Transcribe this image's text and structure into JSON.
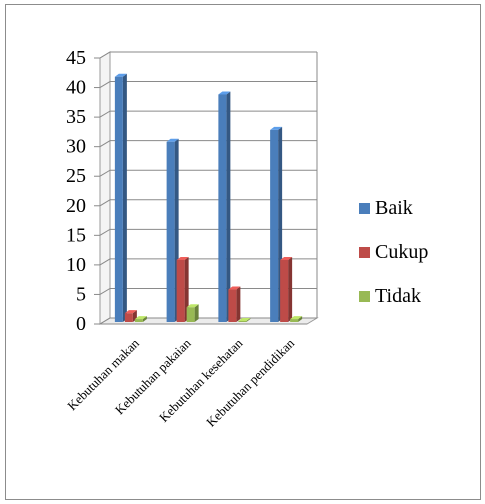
{
  "chart_data": {
    "type": "bar",
    "categories": [
      "Kebutuhan makan",
      "Kebutuhan pakaian",
      "Kebutuhan kesehatan",
      "Kebutuhan pendidikan"
    ],
    "series": [
      {
        "name": "Baik",
        "color": "#4a7ebb",
        "values": [
          42,
          31,
          39,
          33
        ]
      },
      {
        "name": "Cukup",
        "color": "#be4b48",
        "values": [
          2,
          11,
          6,
          11
        ]
      },
      {
        "name": "Tidak",
        "color": "#98b954",
        "values": [
          1,
          3,
          0,
          1
        ]
      }
    ],
    "ylim": [
      0,
      45
    ],
    "yticks": [
      0,
      5,
      10,
      15,
      20,
      25,
      30,
      35,
      40,
      45
    ],
    "grid": true,
    "legend_position": "right",
    "style": "3d-clustered-column"
  }
}
